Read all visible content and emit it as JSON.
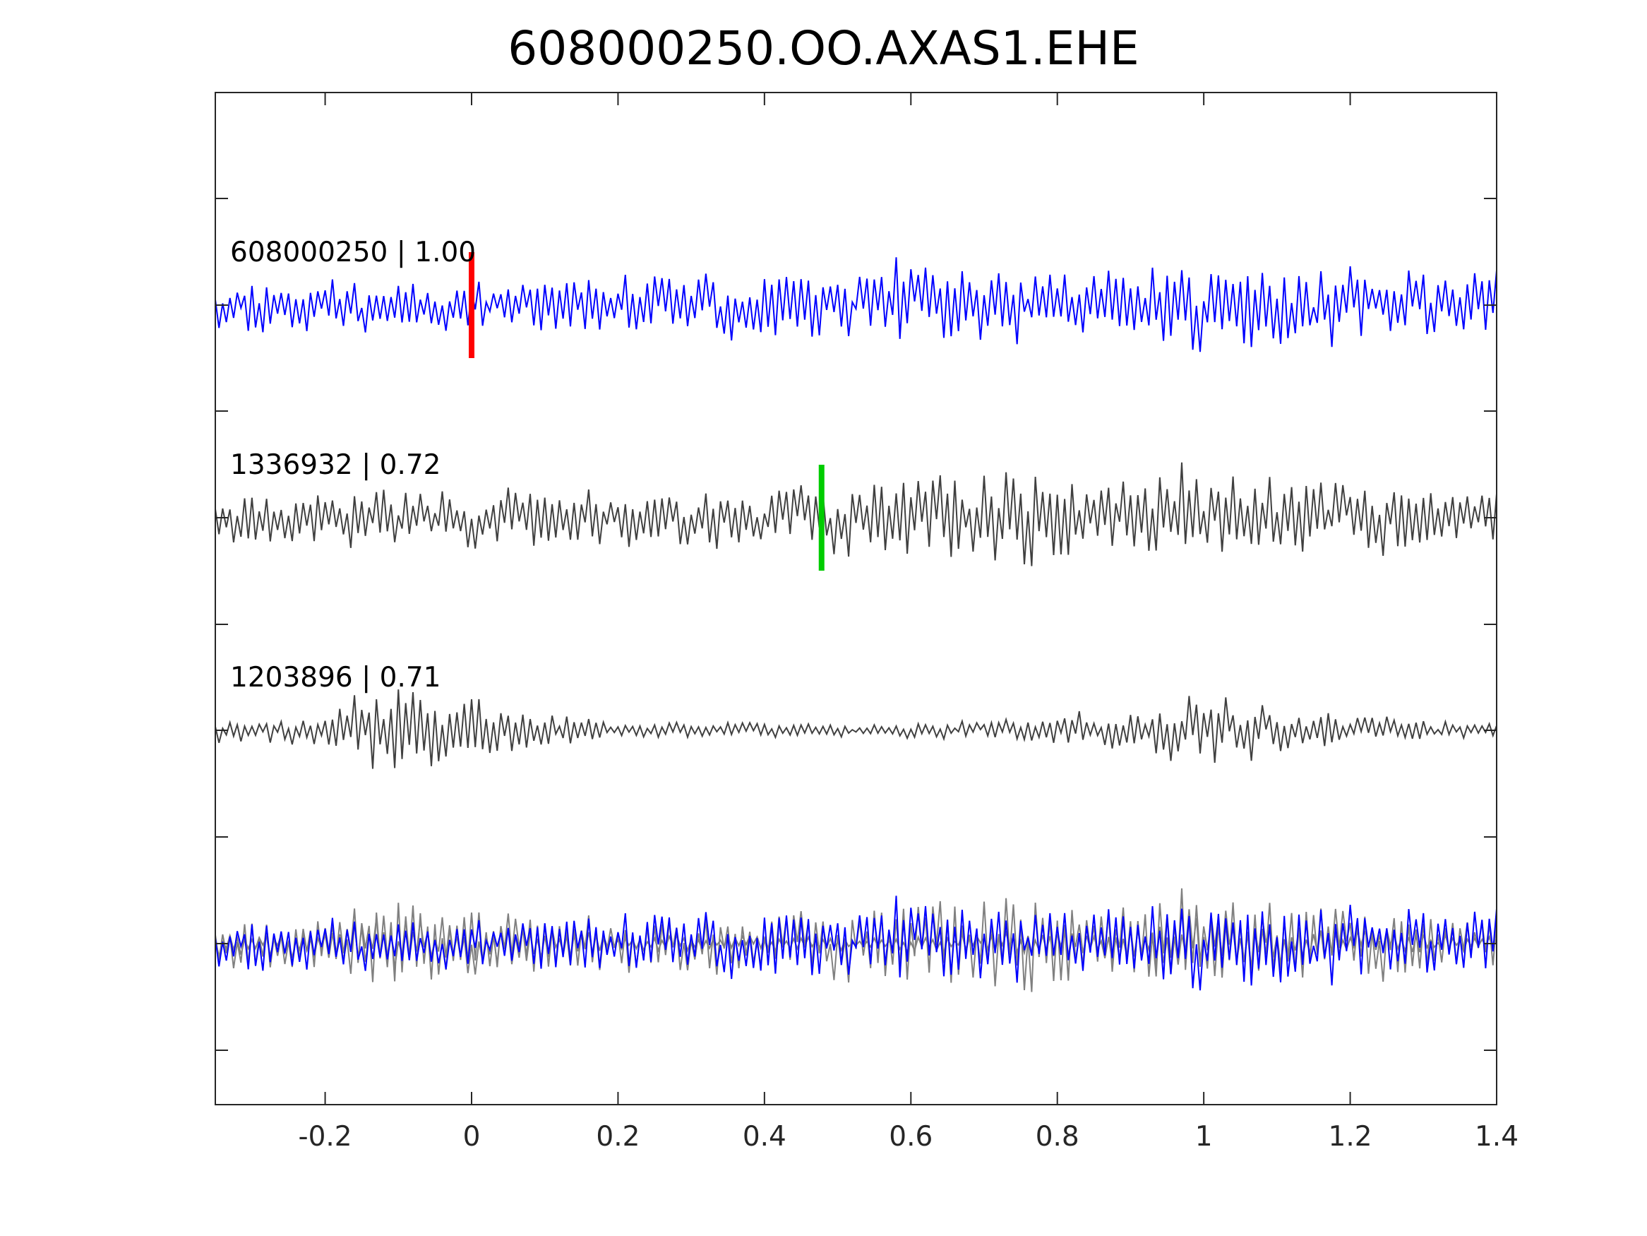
{
  "chart_data": {
    "type": "line",
    "title": "608000250.OO.AXAS1.EHE",
    "xlabel": "",
    "ylabel": "",
    "xlim": [
      -0.35,
      1.4
    ],
    "x_ticks": [
      "-0.2",
      "0",
      "0.2",
      "0.4",
      "0.6",
      "0.8",
      "1",
      "1.2",
      "1.4"
    ],
    "x_tick_values": [
      -0.2,
      0,
      0.2,
      0.4,
      0.6,
      0.8,
      1,
      1.2,
      1.4
    ],
    "grid": false,
    "legend": "none",
    "series": [
      {
        "label": "608000250 | 1.00",
        "color": "#0000ff",
        "offset": 0,
        "seed": 11,
        "amplitude": 0.75,
        "envelope": [
          [
            -0.35,
            0.55
          ],
          [
            0.1,
            0.6
          ],
          [
            0.38,
            0.8
          ],
          [
            0.5,
            0.9
          ],
          [
            0.65,
            1.0
          ],
          [
            0.85,
            0.8
          ],
          [
            1.0,
            1.1
          ],
          [
            1.2,
            0.85
          ],
          [
            1.4,
            0.8
          ]
        ],
        "pick": {
          "time": 0.0,
          "color": "#ff0000"
        }
      },
      {
        "label": "1336932 | 0.72",
        "color": "#404040",
        "offset": 1,
        "seed": 23,
        "amplitude": 0.85,
        "envelope": [
          [
            -0.35,
            0.55
          ],
          [
            0.0,
            0.6
          ],
          [
            0.4,
            0.6
          ],
          [
            0.55,
            0.8
          ],
          [
            0.7,
            1.0
          ],
          [
            0.85,
            0.8
          ],
          [
            0.95,
            1.1
          ],
          [
            1.05,
            0.8
          ],
          [
            1.4,
            0.55
          ]
        ],
        "pick": {
          "time": 0.478,
          "color": "#00cc00"
        }
      },
      {
        "label": "1203896 | 0.71",
        "color": "#404040",
        "offset": 2,
        "seed": 37,
        "amplitude": 0.85,
        "envelope": [
          [
            -0.35,
            0.25
          ],
          [
            -0.2,
            0.35
          ],
          [
            -0.1,
            1.05
          ],
          [
            -0.05,
            0.9
          ],
          [
            0.05,
            0.45
          ],
          [
            0.2,
            0.18
          ],
          [
            0.55,
            0.14
          ],
          [
            0.7,
            0.2
          ],
          [
            0.85,
            0.35
          ],
          [
            1.0,
            0.7
          ],
          [
            1.1,
            0.5
          ],
          [
            1.25,
            0.25
          ],
          [
            1.4,
            0.15
          ]
        ],
        "pick": null
      },
      {
        "label": "",
        "color": "#0000ff",
        "offset": 3,
        "overlay_of": [
          0,
          1,
          2
        ],
        "overlay_colors": [
          "#0000ff",
          "#808080",
          "#808080"
        ]
      }
    ]
  }
}
